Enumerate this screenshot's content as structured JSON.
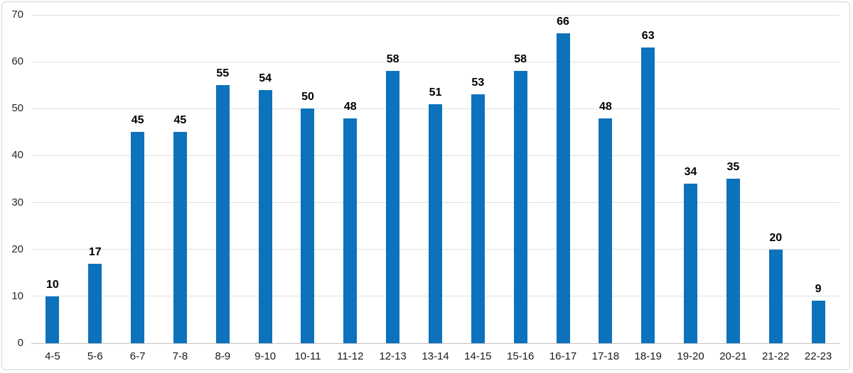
{
  "chart_data": {
    "type": "bar",
    "title": "",
    "xlabel": "",
    "ylabel": "",
    "categories": [
      "4-5",
      "5-6",
      "6-7",
      "7-8",
      "8-9",
      "9-10",
      "10-11",
      "11-12",
      "12-13",
      "13-14",
      "14-15",
      "15-16",
      "16-17",
      "17-18",
      "18-19",
      "19-20",
      "20-21",
      "21-22",
      "22-23"
    ],
    "values": [
      10,
      17,
      45,
      45,
      55,
      54,
      50,
      48,
      58,
      51,
      53,
      58,
      66,
      48,
      63,
      34,
      35,
      20,
      9
    ],
    "ylim": [
      0,
      70
    ],
    "ytick_step": 10,
    "yticks": [
      0,
      10,
      20,
      30,
      40,
      50,
      60,
      70
    ],
    "grid": true,
    "legend": false,
    "data_labels": true
  },
  "colors": {
    "bar": "#0c72bc",
    "gridline": "#e0e0e0",
    "axis_line": "#c3c3c3",
    "tick_text": "#262626",
    "data_label_text": "#000000",
    "border": "#d5d5d5",
    "background": "#ffffff"
  }
}
